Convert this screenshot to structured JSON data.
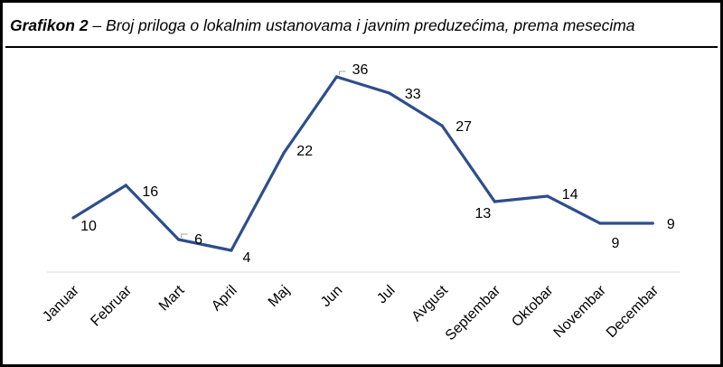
{
  "title": {
    "bold": "Grafikon 2",
    "rest": " – Broj priloga o lokalnim ustanovama i javnim preduzećima, prema mesecima"
  },
  "chart_data": {
    "type": "line",
    "categories": [
      "Januar",
      "Februar",
      "Mart",
      "April",
      "Maj",
      "Jun",
      "Jul",
      "Avgust",
      "Septembar",
      "Oktobar",
      "Novembar",
      "Decembar"
    ],
    "values": [
      10,
      16,
      6,
      4,
      22,
      36,
      33,
      27,
      13,
      14,
      9,
      9
    ],
    "data_labels": [
      "10",
      "16",
      "6",
      "4",
      "22",
      "36",
      "33",
      "27",
      "13",
      "14",
      "9",
      "9"
    ],
    "ylim": [
      0,
      40
    ],
    "grid": false,
    "legend": "none",
    "line_color": "#2E4D8C",
    "axis_color": "#D9D9D9",
    "leader_color": "#A6A6A6"
  }
}
